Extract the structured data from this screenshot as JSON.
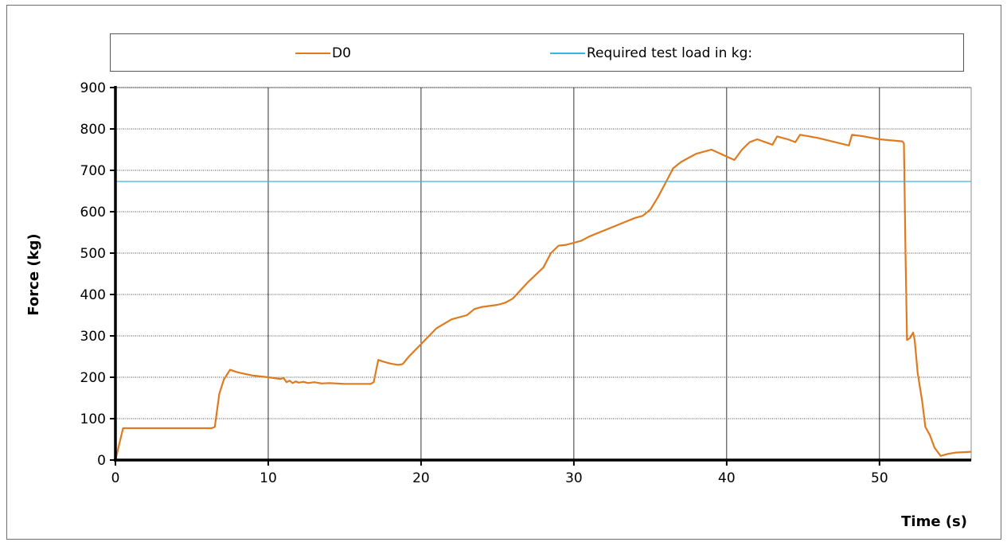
{
  "chart_data": {
    "type": "line",
    "title": "",
    "xlabel": "Time (s)",
    "ylabel": "Force (kg)",
    "xlim": [
      0,
      56
    ],
    "ylim": [
      0,
      900
    ],
    "xticks": [
      0,
      10,
      20,
      30,
      40,
      50
    ],
    "yticks": [
      0,
      100,
      200,
      300,
      400,
      500,
      600,
      700,
      800,
      900
    ],
    "grid": true,
    "legend_position": "top",
    "series": [
      {
        "name": "D0",
        "color": "#E07A1F",
        "x": [
          0,
          0.5,
          1,
          2,
          4,
          6.3,
          6.5,
          6.8,
          7.1,
          7.5,
          8,
          9,
          10,
          10.8,
          11.0,
          11.2,
          11.4,
          11.6,
          11.8,
          12.0,
          12.3,
          12.6,
          13,
          13.5,
          14,
          15,
          16,
          16.7,
          16.9,
          17.2,
          17.5,
          18,
          18.5,
          18.8,
          19.2,
          20,
          21,
          22,
          23,
          23.5,
          24,
          25,
          25.5,
          26,
          27,
          28,
          28.5,
          29,
          29.5,
          30,
          30.5,
          31,
          32,
          33,
          34,
          34.5,
          35,
          35.5,
          36,
          36.5,
          37,
          37.5,
          38,
          39,
          40.5,
          41,
          41.5,
          42,
          43,
          43.3,
          44,
          44.5,
          44.8,
          46,
          48,
          48.2,
          49,
          50,
          51.5,
          51.6,
          51.7,
          51.8,
          52,
          52.2,
          52.3,
          52.5,
          52.8,
          53,
          53.3,
          53.6,
          54,
          54.5,
          55,
          56
        ],
        "y": [
          0,
          77,
          77,
          77,
          77,
          77,
          80,
          160,
          195,
          218,
          212,
          204,
          200,
          196,
          198,
          188,
          192,
          186,
          190,
          187,
          189,
          186,
          188,
          185,
          186,
          184,
          184,
          184,
          188,
          242,
          238,
          233,
          230,
          232,
          250,
          280,
          318,
          340,
          350,
          365,
          370,
          375,
          380,
          390,
          430,
          465,
          500,
          518,
          520,
          525,
          530,
          540,
          555,
          570,
          585,
          590,
          605,
          635,
          670,
          705,
          720,
          730,
          740,
          750,
          725,
          750,
          768,
          775,
          762,
          782,
          775,
          768,
          786,
          778,
          760,
          786,
          782,
          775,
          770,
          765,
          500,
          290,
          295,
          308,
          290,
          210,
          140,
          80,
          60,
          30,
          10,
          15,
          18,
          20
        ]
      },
      {
        "name": "Required test load in kg:",
        "color": "#3CB4E0",
        "x": [
          0,
          56
        ],
        "y": [
          673,
          673
        ]
      }
    ]
  }
}
